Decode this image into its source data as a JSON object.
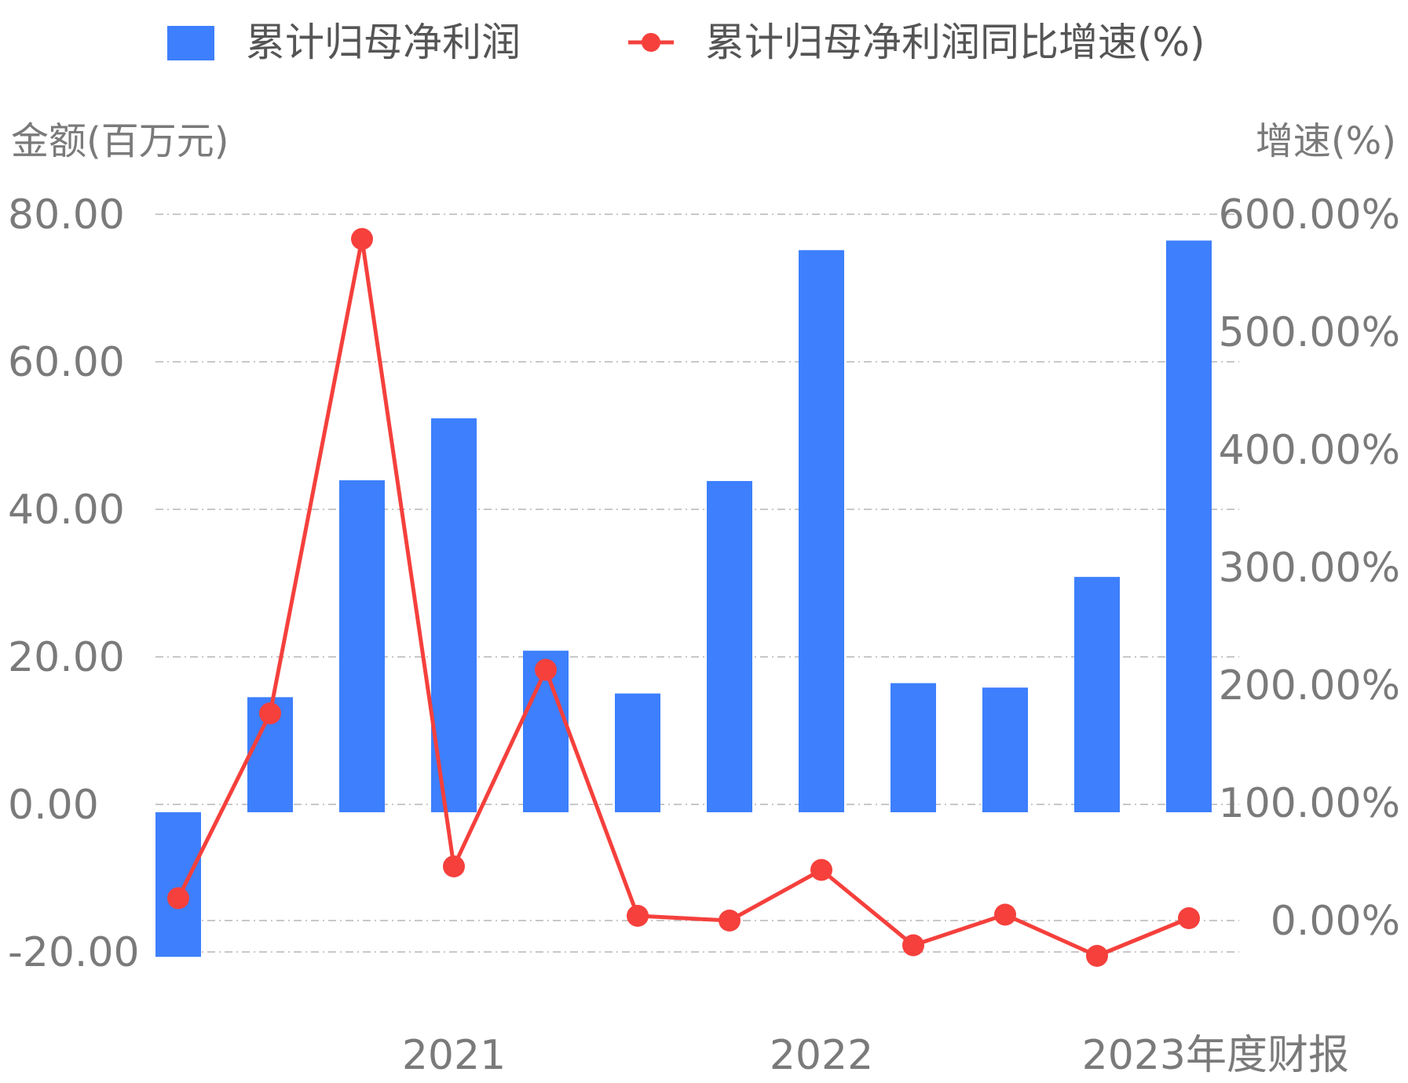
{
  "legend": {
    "bar_label": "累计归母净利润",
    "line_label": "累计归母净利润同比增速(%)"
  },
  "axes": {
    "left_title": "金额(百万元)",
    "right_title": "增速(%)"
  },
  "colors": {
    "bar": "#3d7ffd",
    "line": "#f5403c",
    "grid": "#c8c8c8",
    "text": "#7a7a7a"
  },
  "chart_data": {
    "type": "bar",
    "x_tick_labels": [
      "2021",
      "2022",
      "2023年度财报"
    ],
    "x_tick_positions": [
      3,
      7,
      11
    ],
    "left_axis": {
      "title": "金额(百万元)",
      "ylim": [
        -20,
        80
      ],
      "ticks": [
        "80.00",
        "60.00",
        "40.00",
        "20.00",
        "0.00",
        "-20.00"
      ],
      "tick_values": [
        80,
        60,
        40,
        20,
        0,
        -20
      ]
    },
    "right_axis": {
      "title": "增速(%)",
      "ylim": [
        0,
        600
      ],
      "ticks": [
        "600.00%",
        "500.00%",
        "400.00%",
        "300.00%",
        "200.00%",
        "100.00%",
        "0.00%"
      ],
      "tick_values": [
        600,
        500,
        400,
        300,
        200,
        100,
        0
      ]
    },
    "series": [
      {
        "name": "累计归母净利润",
        "type": "bar",
        "axis": "left",
        "values": [
          -19.6,
          15.6,
          45.0,
          53.4,
          21.9,
          16.1,
          44.9,
          76.2,
          17.5,
          16.9,
          31.9,
          77.5
        ]
      },
      {
        "name": "累计归母净利润同比增速(%)",
        "type": "line",
        "axis": "right",
        "values": [
          19,
          176,
          579,
          46,
          213,
          4,
          0,
          43,
          -21,
          5,
          -30,
          2
        ]
      }
    ],
    "grid": true,
    "legend_position": "top"
  }
}
